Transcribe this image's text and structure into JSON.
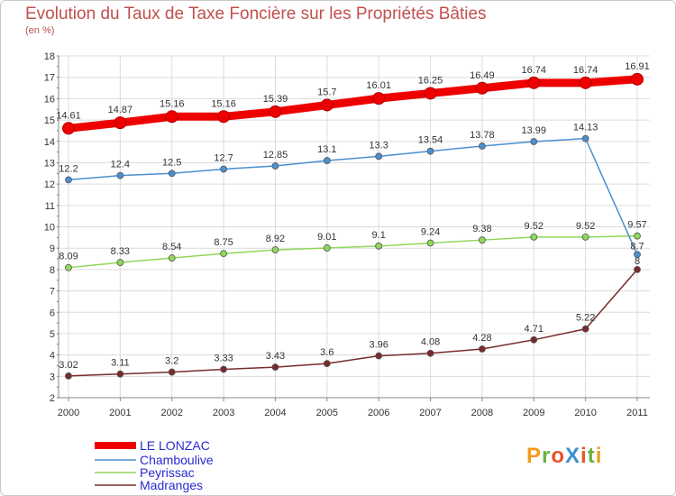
{
  "title": "Evolution du Taux de Taxe Foncière sur les Propriétés Bâties",
  "unit": "(en %)",
  "logo": {
    "text": "ProXiti",
    "colors": [
      "#f29b1c",
      "#6ab23c",
      "#e8542a",
      "#3a8fd0",
      "#e8542a",
      "#6ab23c",
      "#f29b1c"
    ]
  },
  "chart_data": {
    "type": "line",
    "title": "Evolution du Taux de Taxe Foncière sur les Propriétés Bâties",
    "ylabel": "(en %)",
    "xlabel": "",
    "x": [
      "2000",
      "2001",
      "2002",
      "2003",
      "2004",
      "2005",
      "2006",
      "2007",
      "2008",
      "2009",
      "2010",
      "2011"
    ],
    "ylim": [
      2,
      18
    ],
    "yticks": [
      "2",
      "3",
      "4",
      "5",
      "6",
      "7",
      "8",
      "9",
      "10",
      "11",
      "12",
      "13",
      "14",
      "15",
      "16",
      "17",
      "18"
    ],
    "grid": true,
    "legend_position": "bottom-left",
    "series": [
      {
        "name": "LE LONZAC",
        "color": "#ee0000",
        "thick": true,
        "values": [
          14.61,
          14.87,
          15.16,
          15.16,
          15.39,
          15.7,
          16.01,
          16.25,
          16.49,
          16.74,
          16.74,
          16.91
        ],
        "labels": [
          "14.61",
          "14.87",
          "15.16",
          "15.16",
          "15.39",
          "15.7",
          "16.01",
          "16.25",
          "16.49",
          "16.74",
          "16.74",
          "16.91"
        ]
      },
      {
        "name": "Chamboulive",
        "color": "#4a8fd0",
        "thick": false,
        "values": [
          12.2,
          12.4,
          12.5,
          12.7,
          12.85,
          13.1,
          13.3,
          13.54,
          13.78,
          13.99,
          14.13,
          8.7
        ],
        "labels": [
          "12.2",
          "12.4",
          "12.5",
          "12.7",
          "12.85",
          "13.1",
          "13.3",
          "13.54",
          "13.78",
          "13.99",
          "14.13",
          "8.7"
        ]
      },
      {
        "name": "Peyrissac",
        "color": "#8fd85a",
        "thick": false,
        "values": [
          8.09,
          8.33,
          8.54,
          8.75,
          8.92,
          9.01,
          9.1,
          9.24,
          9.38,
          9.52,
          9.52,
          9.57
        ],
        "labels": [
          "8.09",
          "8.33",
          "8.54",
          "8.75",
          "8.92",
          "9.01",
          "9.1",
          "9.24",
          "9.38",
          "9.52",
          "9.52",
          "9.57"
        ]
      },
      {
        "name": "Madranges",
        "color": "#7a2a2a",
        "thick": false,
        "values": [
          3.02,
          3.11,
          3.2,
          3.33,
          3.43,
          3.6,
          3.96,
          4.08,
          4.28,
          4.71,
          5.22,
          8.0
        ],
        "labels": [
          "3.02",
          "3.11",
          "3.2",
          "3.33",
          "3.43",
          "3.6",
          "3.96",
          "4.08",
          "4.28",
          "4.71",
          "5.22",
          "8"
        ]
      }
    ]
  }
}
